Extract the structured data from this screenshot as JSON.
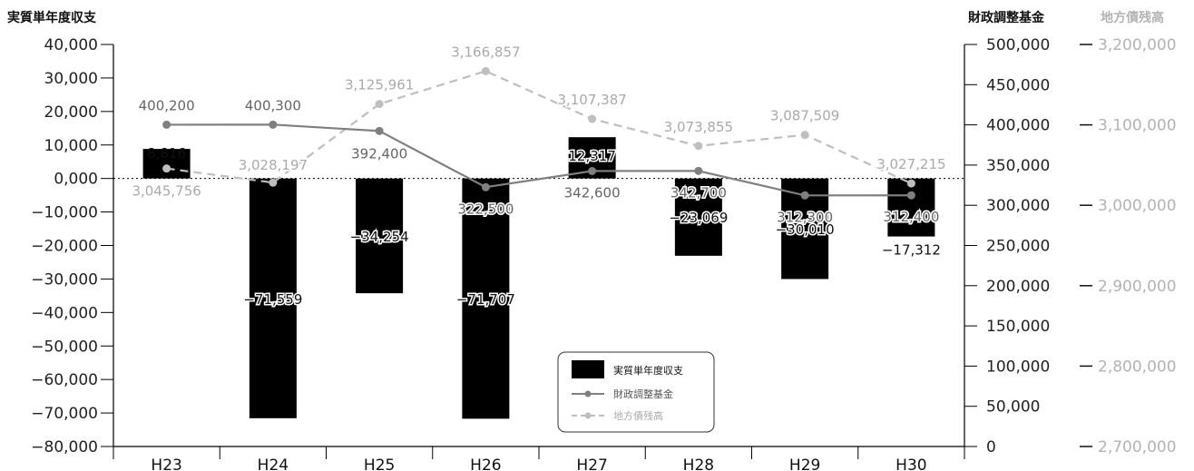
{
  "chart_data": {
    "type": "bar",
    "categories": [
      "H23",
      "H24",
      "H25",
      "H26",
      "H27",
      "H28",
      "H29",
      "H30"
    ],
    "axes": {
      "left": {
        "title": "実質単年度収支",
        "ylim": [
          -80000,
          40000
        ],
        "ticks": [
          40000,
          30000,
          20000,
          10000,
          0,
          -10000,
          -20000,
          -30000,
          -40000,
          -50000,
          -60000,
          -70000,
          -80000
        ],
        "tick_labels": [
          "40,000",
          "30,000",
          "20,000",
          "10,000",
          "0,000",
          "−10,000",
          "−20,000",
          "−30,000",
          "−40,000",
          "−50,000",
          "−60,000",
          "−70,000",
          "−80,000"
        ]
      },
      "right1": {
        "title": "財政調整基金",
        "ylim": [
          0,
          500000
        ],
        "ticks": [
          500000,
          450000,
          400000,
          350000,
          300000,
          250000,
          200000,
          150000,
          100000,
          50000,
          0
        ],
        "tick_labels": [
          "500,000",
          "450,000",
          "400,000",
          "350,000",
          "300,000",
          "250,000",
          "200,000",
          "150,000",
          "100,000",
          "50,000",
          "0"
        ]
      },
      "right2": {
        "title": "地方債残高",
        "ylim": [
          2700000,
          3200000
        ],
        "ticks": [
          3200000,
          3100000,
          3000000,
          2900000,
          2800000,
          2700000
        ],
        "tick_labels": [
          "3,200,000",
          "3,100,000",
          "3,000,000",
          "2,900,000",
          "2,800,000",
          "2,700,000"
        ]
      }
    },
    "series": [
      {
        "name": "実質単年度収支",
        "type": "bar",
        "axis": "left",
        "color": "#000000",
        "values": [
          8816,
          -71559,
          -34254,
          -71707,
          12317,
          -23069,
          -30010,
          -17312
        ],
        "labels": [
          "8,816",
          "−71,559",
          "−34,254",
          "−71,707",
          "12,317",
          "−23,069",
          "−30,010",
          "−17,312"
        ]
      },
      {
        "name": "財政調整基金",
        "type": "line",
        "axis": "right1",
        "color": "#7f7f7f",
        "values": [
          400200,
          400300,
          392400,
          322500,
          342600,
          342700,
          312300,
          312400
        ],
        "labels": [
          "400,200",
          "400,300",
          "392,400",
          "322,500",
          "342,600",
          "342,700",
          "312,300",
          "312,400"
        ]
      },
      {
        "name": "地方債残高",
        "type": "line",
        "dashed": true,
        "axis": "right2",
        "color": "#bfbfbf",
        "values": [
          3045756,
          3028197,
          3125961,
          3166857,
          3107387,
          3073855,
          3087509,
          3027215
        ],
        "labels": [
          "3,045,756",
          "3,028,197",
          "3,125,961",
          "3,166,857",
          "3,107,387",
          "3,073,855",
          "3,087,509",
          "3,027,215"
        ]
      }
    ],
    "zero_line": "dotted",
    "legend": "bottom-center-right"
  }
}
